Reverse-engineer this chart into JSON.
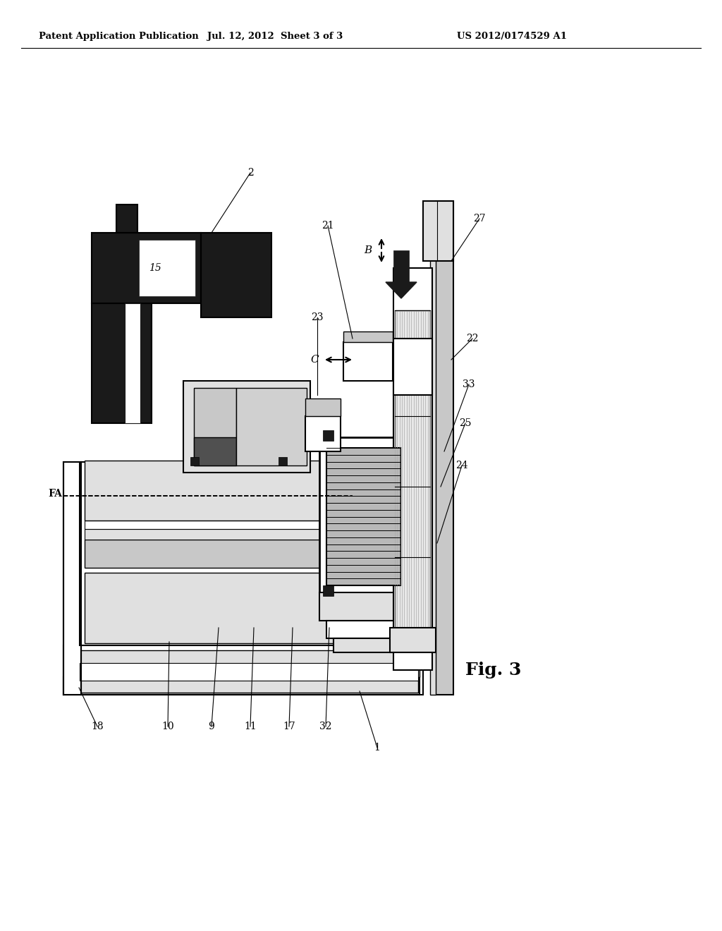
{
  "bg_color": "#ffffff",
  "header_left": "Patent Application Publication",
  "header_center": "Jul. 12, 2012  Sheet 3 of 3",
  "header_right": "US 2012/0174529 A1",
  "fig_label": "Fig. 3",
  "black": "#1a1a1a",
  "dark_gray": "#404040",
  "mid_gray": "#808080",
  "light_gray": "#c8c8c8",
  "lighter_gray": "#e0e0e0",
  "white": "#ffffff"
}
